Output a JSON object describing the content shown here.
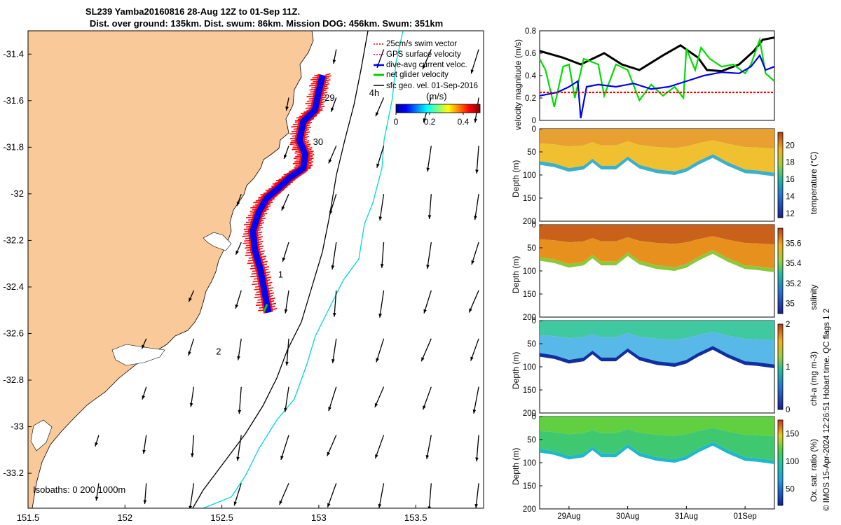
{
  "title_line1": "SL239 Yamba20160816 28-Aug 12Z to 01-Sep 11Z.",
  "title_line2": "Dist. over ground: 135km. Dist. swum: 86km. Mission DOG: 456km. Swum: 351km",
  "credit": "© IMOS 15-Apr-2024 12:26:51 Hobart time. QC flags 1  2",
  "colors": {
    "land": "#f9c999",
    "swim": "#ff0000",
    "gps": "#cc00cc",
    "diveavg": "#0000ee",
    "netglider": "#00cc00",
    "geostrophic": "#000000",
    "isobath200": "#000000",
    "isobath1000": "#00d8d8"
  },
  "chart_data": [
    {
      "type": "map",
      "name": "glider track map",
      "xlim": [
        151.5,
        153.85
      ],
      "ylim": [
        -33.35,
        -31.3
      ],
      "xticks": [
        "151.5",
        "152",
        "152.5",
        "153",
        "153.5"
      ],
      "yticks": [
        "-31.4",
        "-31.6",
        "-31.8",
        "-32",
        "-32.2",
        "-32.4",
        "-32.6",
        "-32.8",
        "-33",
        "-33.2"
      ],
      "legend": {
        "position": "top-right",
        "entries": [
          "25cm/s swim vector",
          "GPS surface velocity",
          "dive-avg current veloc.",
          "net glider velocity",
          "sfc geo. vel. 01-Sep-2016"
        ]
      },
      "colorbar": {
        "label": "(m/s)",
        "ticks": [
          "0",
          "0.2",
          "0.4"
        ],
        "range": [
          0,
          0.5
        ]
      },
      "isobaths_label": "Isobaths: 0   200  1000m",
      "day_labels": [
        {
          "text": "29",
          "lon": 153.03,
          "lat": -31.6
        },
        {
          "text": "30",
          "lon": 152.97,
          "lat": -31.79
        },
        {
          "text": "1",
          "lon": 152.79,
          "lat": -32.36
        },
        {
          "text": "2",
          "lon": 152.47,
          "lat": -32.69
        },
        {
          "text": "4h",
          "lon": 153.26,
          "lat": -31.58
        }
      ],
      "track": [
        [
          153.02,
          -31.49
        ],
        [
          153.0,
          -31.56
        ],
        [
          152.98,
          -31.64
        ],
        [
          152.92,
          -31.69
        ],
        [
          152.9,
          -31.77
        ],
        [
          152.93,
          -31.83
        ],
        [
          152.92,
          -31.89
        ],
        [
          152.85,
          -31.93
        ],
        [
          152.8,
          -31.97
        ],
        [
          152.73,
          -32.02
        ],
        [
          152.69,
          -32.08
        ],
        [
          152.66,
          -32.16
        ],
        [
          152.67,
          -32.24
        ],
        [
          152.7,
          -32.33
        ],
        [
          152.72,
          -32.42
        ],
        [
          152.74,
          -32.51
        ]
      ]
    },
    {
      "type": "line",
      "ylabel": "velocity magnitude (m/s)",
      "ylim": [
        0,
        0.8
      ],
      "yticks": [
        "0",
        "0.2",
        "0.4",
        "0.6",
        "0.8"
      ],
      "xlim_days": [
        28.5,
        32.5
      ],
      "series": [
        {
          "color": "#000000",
          "values": [
            [
              28.5,
              0.62
            ],
            [
              28.9,
              0.56
            ],
            [
              29.2,
              0.5
            ],
            [
              29.6,
              0.6
            ],
            [
              29.9,
              0.5
            ],
            [
              30.2,
              0.45
            ],
            [
              30.6,
              0.58
            ],
            [
              30.9,
              0.67
            ],
            [
              31.2,
              0.56
            ],
            [
              31.35,
              0.45
            ],
            [
              31.6,
              0.44
            ],
            [
              31.9,
              0.5
            ],
            [
              32.15,
              0.62
            ],
            [
              32.3,
              0.72
            ],
            [
              32.5,
              0.74
            ]
          ]
        },
        {
          "color": "#00dd00",
          "values": [
            [
              28.5,
              0.55
            ],
            [
              28.6,
              0.45
            ],
            [
              28.75,
              0.12
            ],
            [
              28.9,
              0.48
            ],
            [
              29.0,
              0.5
            ],
            [
              29.1,
              0.2
            ],
            [
              29.25,
              0.55
            ],
            [
              29.5,
              0.5
            ],
            [
              29.6,
              0.22
            ],
            [
              29.8,
              0.5
            ],
            [
              30.0,
              0.45
            ],
            [
              30.2,
              0.18
            ],
            [
              30.4,
              0.32
            ],
            [
              30.6,
              0.22
            ],
            [
              30.8,
              0.3
            ],
            [
              30.95,
              0.2
            ],
            [
              31.0,
              0.64
            ],
            [
              31.15,
              0.45
            ],
            [
              31.25,
              0.65
            ],
            [
              31.4,
              0.55
            ],
            [
              31.6,
              0.48
            ],
            [
              31.8,
              0.5
            ],
            [
              32.0,
              0.42
            ],
            [
              32.1,
              0.5
            ],
            [
              32.25,
              0.72
            ],
            [
              32.35,
              0.42
            ],
            [
              32.5,
              0.35
            ]
          ]
        },
        {
          "color": "#0000ee",
          "values": [
            [
              28.5,
              0.22
            ],
            [
              28.8,
              0.25
            ],
            [
              29.0,
              0.3
            ],
            [
              29.15,
              0.35
            ],
            [
              29.2,
              0.02
            ],
            [
              29.3,
              0.3
            ],
            [
              29.5,
              0.32
            ],
            [
              29.8,
              0.3
            ],
            [
              30.1,
              0.33
            ],
            [
              30.4,
              0.28
            ],
            [
              30.7,
              0.3
            ],
            [
              31.0,
              0.35
            ],
            [
              31.3,
              0.4
            ],
            [
              31.6,
              0.43
            ],
            [
              31.9,
              0.42
            ],
            [
              32.1,
              0.48
            ],
            [
              32.25,
              0.58
            ],
            [
              32.35,
              0.45
            ],
            [
              32.5,
              0.48
            ]
          ]
        },
        {
          "color": "#ff0000",
          "values": [
            [
              28.5,
              0.25
            ],
            [
              32.5,
              0.25
            ]
          ]
        }
      ]
    },
    {
      "type": "heatmap",
      "ylabel": "Depth (m)",
      "colorbar_label": "temperature (°C)",
      "yticks": [
        "0",
        "50",
        "100",
        "150",
        "200"
      ],
      "colorbar_ticks": [
        "12",
        "14",
        "16",
        "18",
        "20"
      ],
      "range": [
        11.5,
        21.5
      ]
    },
    {
      "type": "heatmap",
      "ylabel": "Depth (m)",
      "colorbar_label": "salinity",
      "yticks": [
        "0",
        "50",
        "100",
        "150",
        "200"
      ],
      "colorbar_ticks": [
        "35",
        "35.2",
        "35.4",
        "35.6"
      ],
      "range": [
        34.9,
        35.75
      ]
    },
    {
      "type": "heatmap",
      "ylabel": "Depth (m)",
      "colorbar_label": "chl-a (mg m-3)",
      "yticks": [
        "0",
        "50",
        "100",
        "150",
        "200"
      ],
      "colorbar_ticks": [
        "0",
        "1",
        "2"
      ],
      "range": [
        0,
        2
      ]
    },
    {
      "type": "heatmap",
      "ylabel": "Depth (m)",
      "colorbar_label": "Ox. sat. ratio (%)",
      "yticks": [
        "0",
        "50",
        "100",
        "150",
        "200"
      ],
      "colorbar_ticks": [
        "50",
        "100",
        "150"
      ],
      "range": [
        20,
        175
      ],
      "xticks": [
        "29Aug",
        "30Aug",
        "31Aug",
        "01Sep"
      ]
    }
  ]
}
